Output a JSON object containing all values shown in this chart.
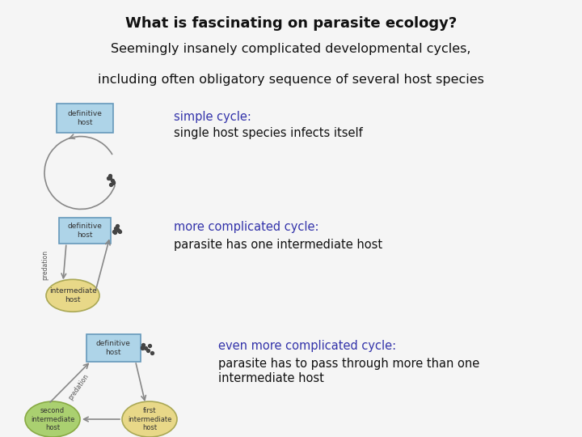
{
  "title": "What is fascinating on parasite ecology?",
  "subtitle1": "Seemingly insanely complicated developmental cycles,",
  "subtitle2": "including often obligatory sequence of several host species",
  "header_bg": "#b8dde4",
  "body_bg": "#f5f5f5",
  "title_color": "#111111",
  "subtitle_color": "#111111",
  "label1_title": "simple cycle:",
  "label1_body": "single host species infects itself",
  "label2_title": "more complicated cycle:",
  "label2_body": "parasite has one intermediate host",
  "label3_title": "even more complicated cycle:",
  "label3_body1": "parasite has to pass through more than one",
  "label3_body2": "intermediate host",
  "label_title_color": "#3333aa",
  "label_body_color": "#111111",
  "box_fill_blue": "#aed4e8",
  "box_fill_yellow": "#e8d888",
  "box_fill_green": "#aad070",
  "box_stroke": "#6699bb",
  "dot_color": "#444444",
  "arrow_color": "#888888",
  "predation_color": "#555555"
}
